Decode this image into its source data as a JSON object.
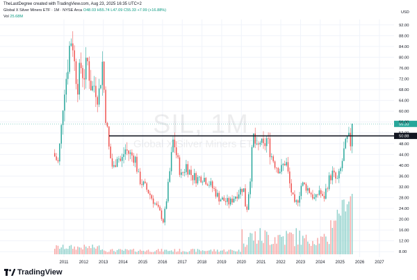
{
  "header": {
    "created_line": "TheLastDegree created with TradingView.com, Aug 23, 2025 16:35 UTC+2"
  },
  "legend": {
    "symbol": "Global X Silver Miners ETF · 1M · NYSE Arca",
    "ohlc": "O48.03 H55.74 L47.09 C55.33 +7.99 (+16.88%)",
    "vol_label": "Vol",
    "vol_value": "25.68M"
  },
  "currency": "USD",
  "watermark": {
    "ticker": "SIL, 1M",
    "name": "Global X Silver Miners ETF"
  },
  "price_labels": {
    "last": "55.33",
    "line": "50.88"
  },
  "logo_text": "TradingView",
  "colors": {
    "up": "#26a69a",
    "down": "#ef5350",
    "line": "#131722",
    "grid": "#f0f3fa"
  },
  "chart_data": {
    "type": "candlestick",
    "title": "",
    "x_ticks": [
      "2011",
      "2012",
      "2013",
      "2014",
      "2015",
      "2016",
      "2017",
      "2018",
      "2019",
      "2020",
      "2021",
      "2022",
      "2023",
      "2024",
      "2025",
      "2026",
      "2027"
    ],
    "y_ticks": [
      "92.00",
      "88.00",
      "84.00",
      "80.00",
      "76.00",
      "72.00",
      "68.00",
      "64.00",
      "60.00",
      "56.00",
      "52.00",
      "48.00",
      "44.00",
      "40.00",
      "36.00",
      "32.00",
      "28.00",
      "24.00",
      "20.00",
      "16.00",
      "12.00",
      "8.00"
    ],
    "ylim": [
      6,
      94
    ],
    "horizontal_line": 50.88,
    "last_close": 55.33,
    "anchors": [
      [
        2010.45,
        44.5
      ],
      [
        2010.7,
        41
      ],
      [
        2010.85,
        52
      ],
      [
        2011.0,
        68
      ],
      [
        2011.15,
        74
      ],
      [
        2011.3,
        85
      ],
      [
        2011.42,
        88
      ],
      [
        2011.55,
        76
      ],
      [
        2011.7,
        70
      ],
      [
        2011.85,
        77
      ],
      [
        2012.0,
        73
      ],
      [
        2012.2,
        78
      ],
      [
        2012.4,
        68
      ],
      [
        2012.55,
        70
      ],
      [
        2012.75,
        65
      ],
      [
        2012.95,
        78
      ],
      [
        2013.1,
        60
      ],
      [
        2013.3,
        45
      ],
      [
        2013.5,
        38
      ],
      [
        2013.7,
        44
      ],
      [
        2013.9,
        41
      ],
      [
        2014.1,
        46
      ],
      [
        2014.35,
        44
      ],
      [
        2014.6,
        43
      ],
      [
        2014.8,
        35
      ],
      [
        2015.0,
        33
      ],
      [
        2015.3,
        30
      ],
      [
        2015.6,
        26
      ],
      [
        2015.9,
        22
      ],
      [
        2016.05,
        19
      ],
      [
        2016.3,
        33
      ],
      [
        2016.55,
        50
      ],
      [
        2016.75,
        42
      ],
      [
        2016.95,
        36
      ],
      [
        2017.2,
        40
      ],
      [
        2017.5,
        36
      ],
      [
        2017.8,
        35
      ],
      [
        2018.0,
        36
      ],
      [
        2018.3,
        34
      ],
      [
        2018.6,
        31
      ],
      [
        2018.85,
        28
      ],
      [
        2019.1,
        27
      ],
      [
        2019.4,
        26
      ],
      [
        2019.6,
        28
      ],
      [
        2019.85,
        30
      ],
      [
        2020.1,
        32
      ],
      [
        2020.25,
        22
      ],
      [
        2020.45,
        36
      ],
      [
        2020.6,
        51
      ],
      [
        2020.8,
        45
      ],
      [
        2020.95,
        49
      ],
      [
        2021.1,
        46
      ],
      [
        2021.3,
        50
      ],
      [
        2021.5,
        44
      ],
      [
        2021.75,
        40
      ],
      [
        2022.0,
        38
      ],
      [
        2022.25,
        42
      ],
      [
        2022.45,
        33
      ],
      [
        2022.7,
        25
      ],
      [
        2022.85,
        27
      ],
      [
        2023.05,
        33
      ],
      [
        2023.3,
        32
      ],
      [
        2023.5,
        30
      ],
      [
        2023.75,
        27
      ],
      [
        2023.95,
        31
      ],
      [
        2024.15,
        27
      ],
      [
        2024.4,
        34
      ],
      [
        2024.6,
        37
      ],
      [
        2024.85,
        34
      ],
      [
        2025.0,
        37
      ],
      [
        2025.2,
        45
      ],
      [
        2025.4,
        50
      ],
      [
        2025.55,
        48
      ],
      [
        2025.62,
        55.3
      ]
    ]
  }
}
